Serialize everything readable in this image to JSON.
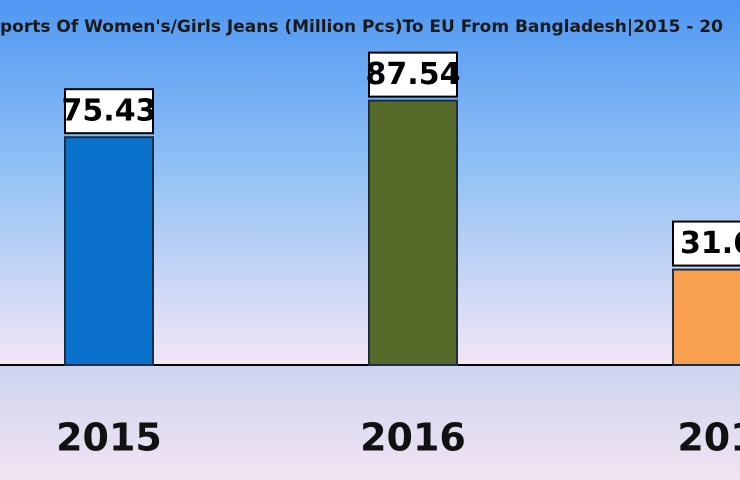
{
  "chart_data": {
    "type": "bar",
    "title": "ports Of Women's/Girls Jeans (Million Pcs)To EU From Bangladesh|2015 - 20",
    "categories": [
      "2015",
      "2016",
      "201"
    ],
    "values": [
      75.43,
      87.54,
      31.6
    ],
    "colors": [
      "#0a72cc",
      "#566b2a",
      "#f9a04e"
    ]
  }
}
